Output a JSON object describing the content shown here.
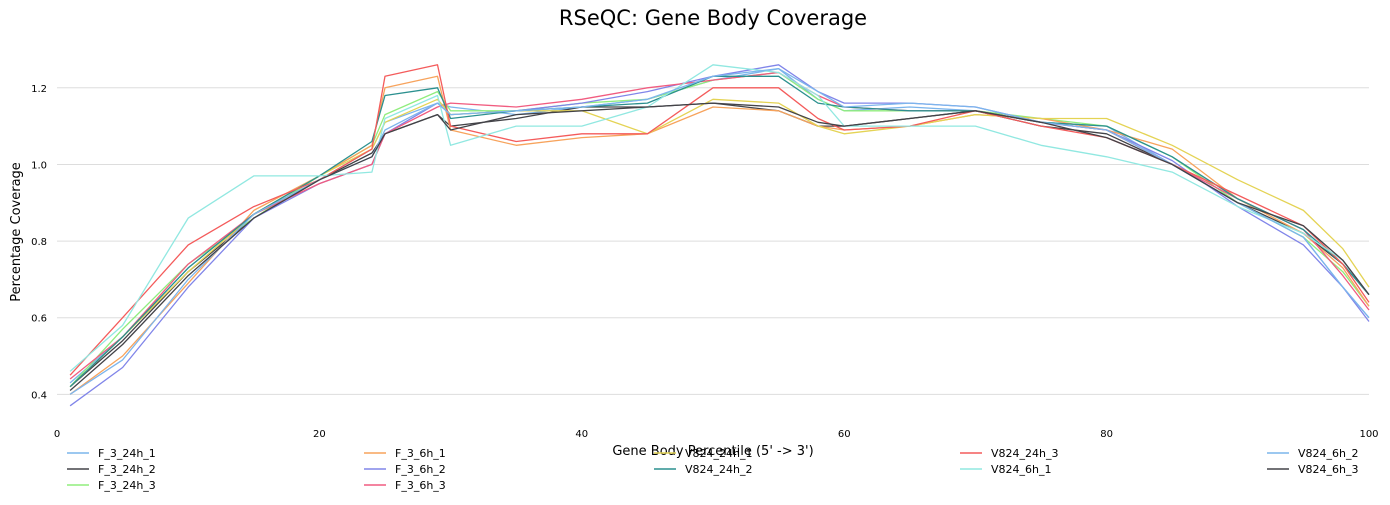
{
  "chart_data": {
    "type": "line",
    "title": "RSeQC: Gene Body Coverage",
    "xlabel": "Gene Body Percentile (5' -> 3')",
    "ylabel": "Percentage Coverage",
    "xlim": [
      0,
      100
    ],
    "ylim": [
      0.32,
      1.33
    ],
    "xticks": [
      0,
      20,
      40,
      60,
      80,
      100
    ],
    "yticks": [
      0.4,
      0.6,
      0.8,
      1.0,
      1.2
    ],
    "xtick_labels": [
      "0",
      "20",
      "40",
      "60",
      "80",
      "100"
    ],
    "ytick_labels": [
      "0.4",
      "0.6",
      "0.8",
      "1.0",
      "1.2"
    ],
    "grid": "horizontal",
    "legend_position": "bottom",
    "x": [
      1,
      5,
      10,
      15,
      20,
      24,
      25,
      29,
      30,
      35,
      40,
      45,
      50,
      55,
      58,
      60,
      65,
      70,
      75,
      80,
      85,
      90,
      95,
      98,
      100
    ],
    "series": [
      {
        "name": "F_3_24h_1",
        "color": "#7cb5ec",
        "values": [
          0.43,
          0.55,
          0.73,
          0.87,
          0.96,
          1.04,
          1.11,
          1.16,
          1.15,
          1.13,
          1.15,
          1.17,
          1.22,
          1.25,
          1.17,
          1.14,
          1.15,
          1.14,
          1.11,
          1.1,
          1.0,
          0.9,
          0.81,
          0.68,
          0.6
        ]
      },
      {
        "name": "F_3_24h_2",
        "color": "#434348",
        "values": [
          0.42,
          0.54,
          0.72,
          0.86,
          0.96,
          1.03,
          1.08,
          1.13,
          1.1,
          1.12,
          1.15,
          1.15,
          1.16,
          1.14,
          1.1,
          1.1,
          1.12,
          1.14,
          1.1,
          1.08,
          1.0,
          0.9,
          0.82,
          0.74,
          0.66
        ]
      },
      {
        "name": "F_3_24h_3",
        "color": "#90ed7d",
        "values": [
          0.42,
          0.57,
          0.74,
          0.86,
          0.97,
          1.05,
          1.13,
          1.19,
          1.14,
          1.14,
          1.16,
          1.17,
          1.22,
          1.24,
          1.17,
          1.14,
          1.14,
          1.14,
          1.12,
          1.1,
          1.02,
          0.9,
          0.81,
          0.72,
          0.63
        ]
      },
      {
        "name": "F_3_6h_1",
        "color": "#f7a35c",
        "values": [
          0.4,
          0.5,
          0.69,
          0.88,
          0.97,
          1.05,
          1.2,
          1.23,
          1.09,
          1.05,
          1.07,
          1.08,
          1.15,
          1.14,
          1.1,
          1.09,
          1.1,
          1.13,
          1.12,
          1.09,
          1.04,
          0.91,
          0.82,
          0.73,
          0.63
        ]
      },
      {
        "name": "F_3_6h_2",
        "color": "#8085e9",
        "values": [
          0.37,
          0.47,
          0.68,
          0.86,
          0.95,
          1.0,
          1.08,
          1.16,
          1.13,
          1.14,
          1.16,
          1.19,
          1.23,
          1.26,
          1.19,
          1.16,
          1.16,
          1.15,
          1.11,
          1.09,
          1.01,
          0.89,
          0.79,
          0.68,
          0.59
        ]
      },
      {
        "name": "F_3_6h_3",
        "color": "#f15c80",
        "values": [
          0.44,
          0.55,
          0.74,
          0.87,
          0.95,
          1.0,
          1.08,
          1.15,
          1.16,
          1.15,
          1.17,
          1.2,
          1.22,
          1.24,
          1.18,
          1.15,
          1.14,
          1.14,
          1.11,
          1.09,
          1.0,
          0.91,
          0.83,
          0.71,
          0.62
        ]
      },
      {
        "name": "V824_24h_1",
        "color": "#e4d354",
        "values": [
          0.42,
          0.55,
          0.72,
          0.87,
          0.97,
          1.04,
          1.11,
          1.17,
          1.13,
          1.14,
          1.14,
          1.08,
          1.17,
          1.16,
          1.1,
          1.08,
          1.1,
          1.13,
          1.12,
          1.12,
          1.05,
          0.96,
          0.88,
          0.78,
          0.68
        ]
      },
      {
        "name": "V824_24h_2",
        "color": "#2b908f",
        "values": [
          0.42,
          0.55,
          0.73,
          0.87,
          0.97,
          1.06,
          1.18,
          1.2,
          1.12,
          1.14,
          1.15,
          1.16,
          1.23,
          1.23,
          1.16,
          1.15,
          1.14,
          1.14,
          1.11,
          1.1,
          1.02,
          0.91,
          0.83,
          0.74,
          0.66
        ]
      },
      {
        "name": "V824_24h_3",
        "color": "#f45b5b",
        "values": [
          0.45,
          0.6,
          0.79,
          0.89,
          0.96,
          1.04,
          1.23,
          1.26,
          1.1,
          1.06,
          1.08,
          1.08,
          1.2,
          1.2,
          1.12,
          1.09,
          1.1,
          1.14,
          1.1,
          1.07,
          1.0,
          0.92,
          0.84,
          0.74,
          0.64
        ]
      },
      {
        "name": "V824_6h_1",
        "color": "#91e8e1",
        "values": [
          0.46,
          0.58,
          0.86,
          0.97,
          0.97,
          0.98,
          1.12,
          1.18,
          1.05,
          1.1,
          1.1,
          1.15,
          1.26,
          1.24,
          1.18,
          1.1,
          1.1,
          1.1,
          1.05,
          1.02,
          0.98,
          0.89,
          0.82,
          0.75,
          0.66
        ]
      },
      {
        "name": "V824_6h_2",
        "color": "#7cb5ec",
        "values": [
          0.4,
          0.49,
          0.7,
          0.87,
          0.96,
          1.02,
          1.09,
          1.16,
          1.13,
          1.14,
          1.15,
          1.17,
          1.23,
          1.25,
          1.19,
          1.15,
          1.16,
          1.15,
          1.11,
          1.09,
          1.0,
          0.9,
          0.81,
          0.68,
          0.6
        ]
      },
      {
        "name": "V824_6h_3",
        "color": "#434348",
        "values": [
          0.41,
          0.53,
          0.71,
          0.86,
          0.96,
          1.02,
          1.08,
          1.13,
          1.09,
          1.13,
          1.14,
          1.15,
          1.16,
          1.15,
          1.11,
          1.1,
          1.12,
          1.14,
          1.11,
          1.07,
          1.0,
          0.9,
          0.84,
          0.75,
          0.66
        ]
      }
    ]
  }
}
